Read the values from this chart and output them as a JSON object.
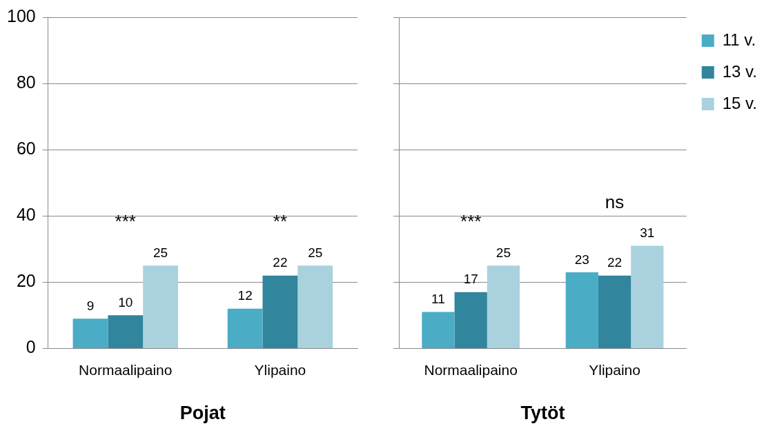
{
  "chart_data": [
    {
      "type": "bar",
      "xlabel": "Pojat",
      "categories": [
        "Normaalipaino",
        "Ylipaino"
      ],
      "series": [
        {
          "color": "#4bacc6",
          "values": [
            9,
            12
          ]
        },
        {
          "color": "#31859c",
          "values": [
            10,
            22
          ]
        },
        {
          "color": "#a9d2de",
          "values": [
            25,
            25
          ]
        }
      ],
      "ylim": [
        0,
        100
      ],
      "yticks": [
        0,
        20,
        40,
        60,
        80,
        100
      ],
      "grid": "y",
      "data_labels": true,
      "legend": false,
      "annotations": [
        "***",
        "**"
      ]
    },
    {
      "type": "bar",
      "xlabel": "Tytöt",
      "categories": [
        "Normaalipaino",
        "Ylipaino"
      ],
      "series": [
        {
          "name": "11 v.",
          "color": "#4bacc6",
          "values": [
            11,
            23
          ]
        },
        {
          "name": "13 v.",
          "color": "#31859c",
          "values": [
            17,
            22
          ]
        },
        {
          "name": "15 v.",
          "color": "#a9d2de",
          "values": [
            25,
            31
          ]
        }
      ],
      "ylim": [
        0,
        100
      ],
      "yticks": [
        0,
        20,
        40,
        60,
        80,
        100
      ],
      "grid": "y",
      "data_labels": true,
      "legend": "top right",
      "tick_labels": "x",
      "annotations": [
        "***",
        "ns"
      ]
    }
  ]
}
